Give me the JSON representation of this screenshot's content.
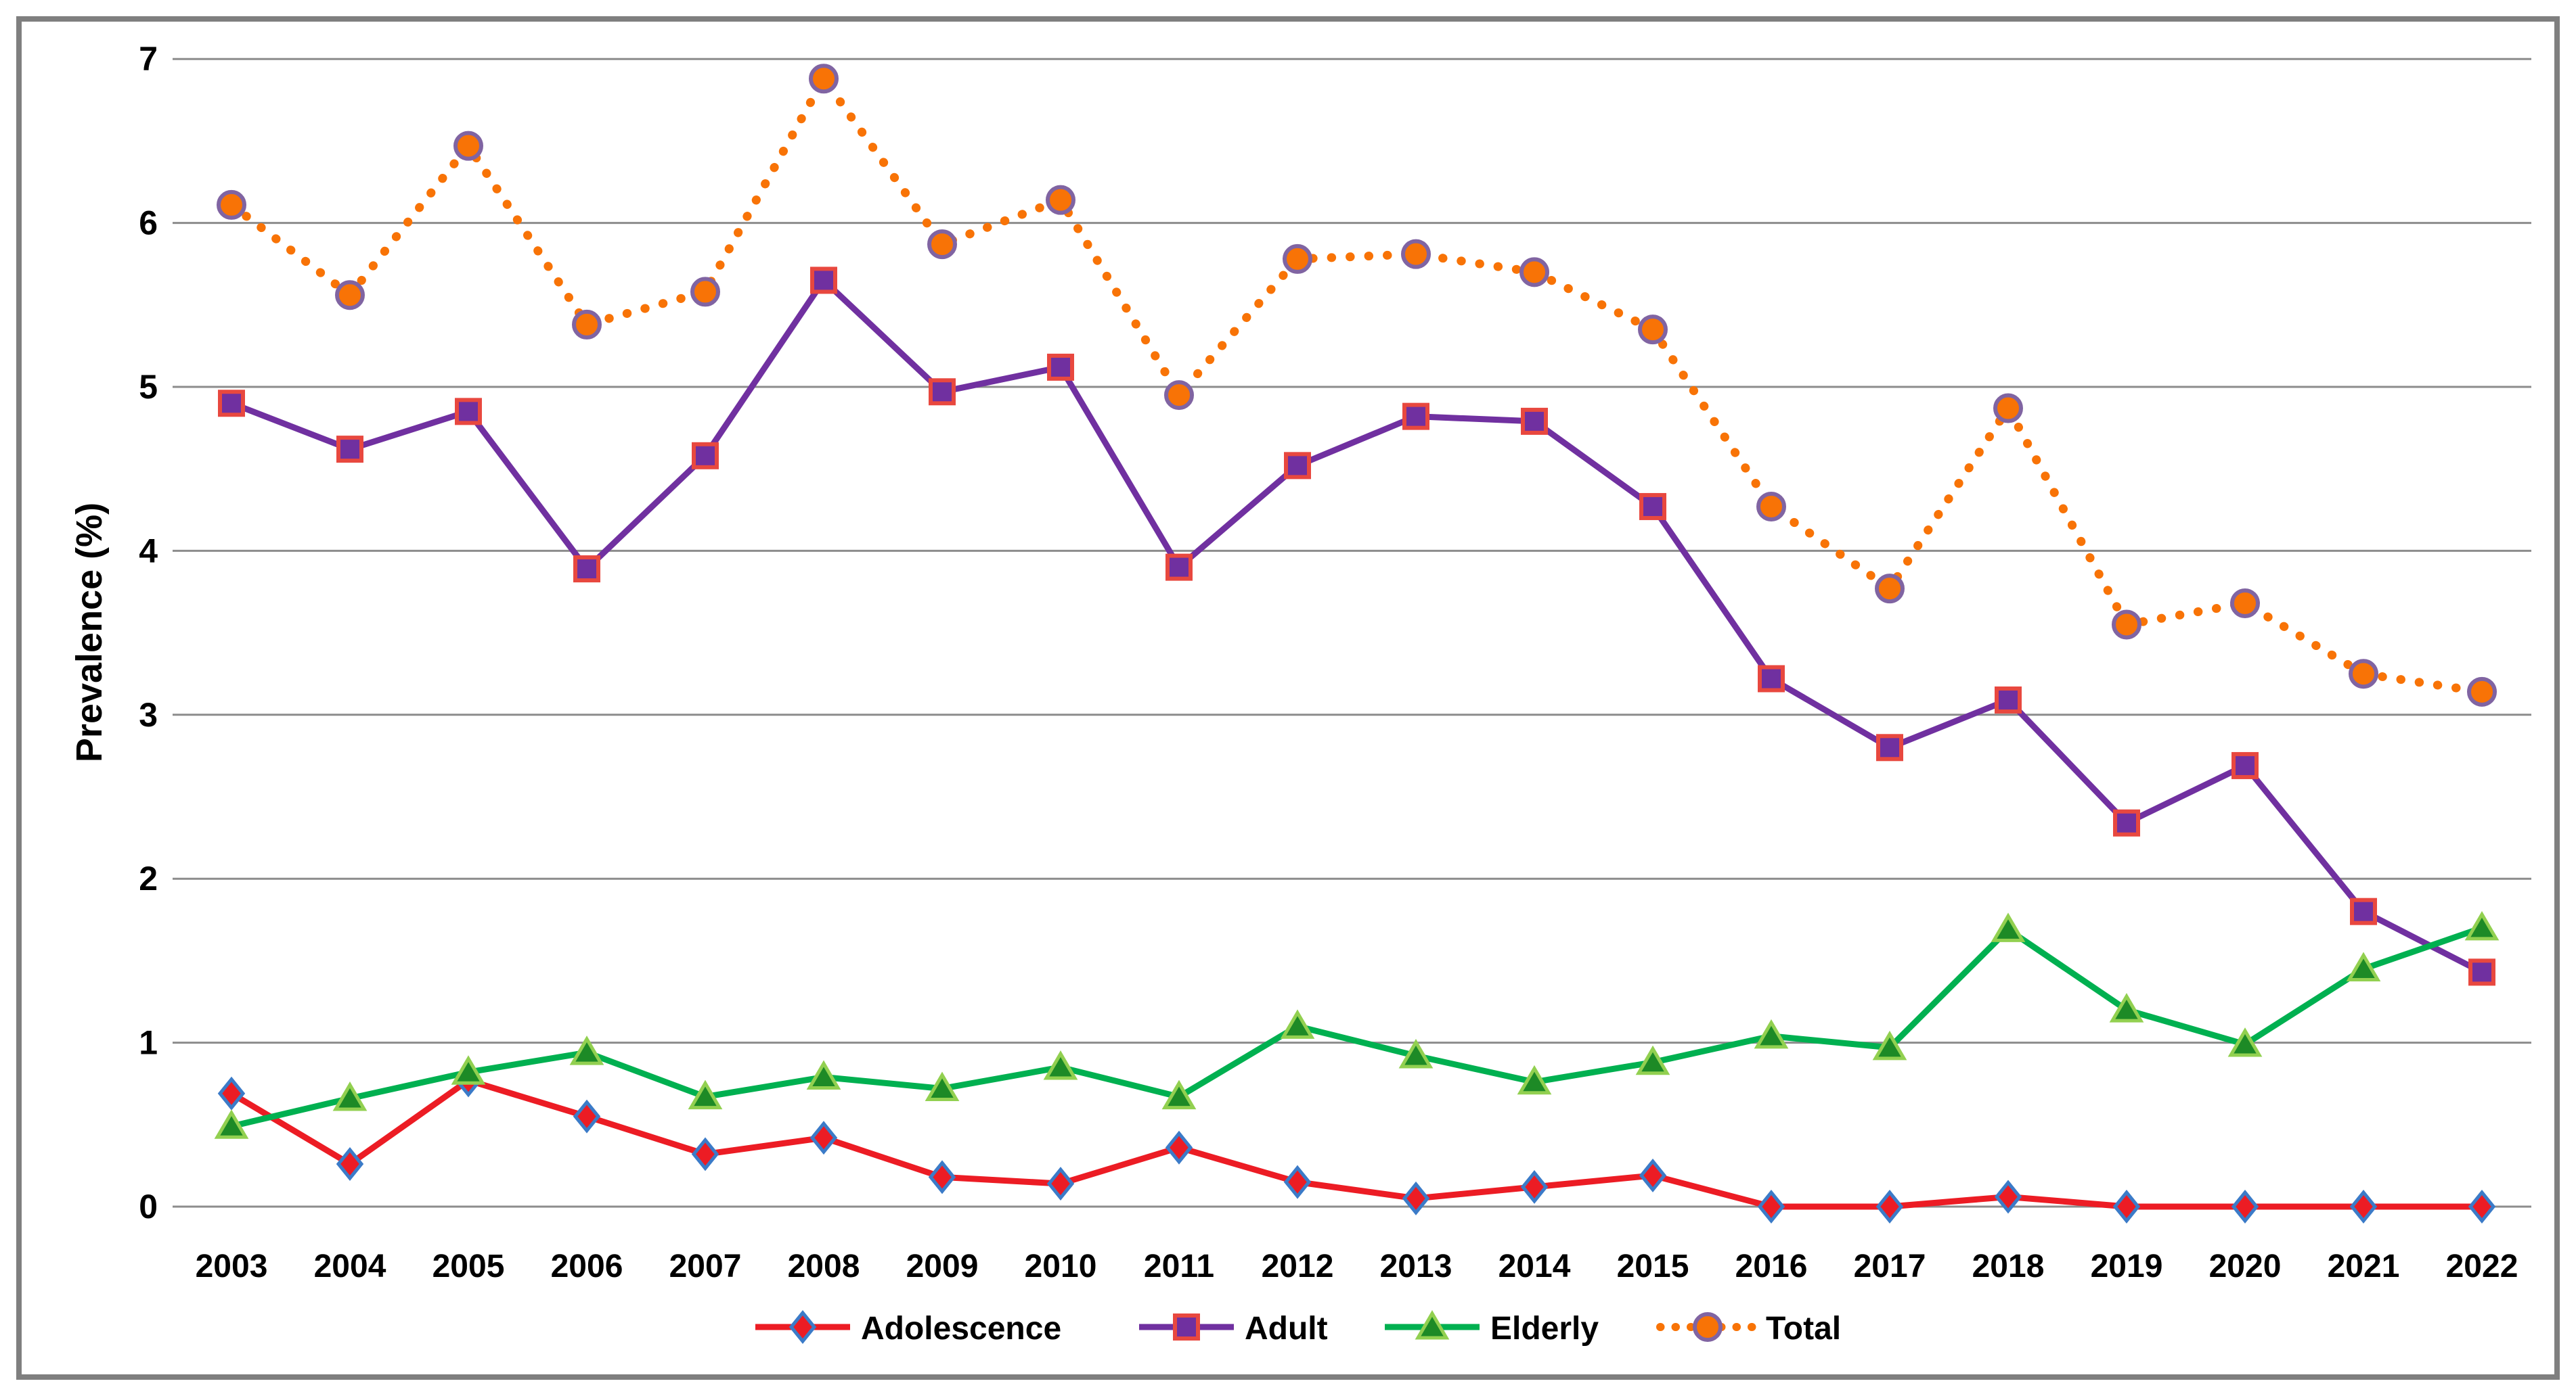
{
  "figure": {
    "background": "#FFFFFF",
    "frame_color": "#7F7F7F",
    "gridline_color": "#8C8C8C",
    "text_color": "#000000"
  },
  "chart_data": {
    "type": "line",
    "title": "",
    "xlabel": "",
    "ylabel": "Prevalence (%)",
    "ylim": [
      0,
      7
    ],
    "yticks": [
      "0",
      "1",
      "2",
      "3",
      "4",
      "5",
      "6",
      "7"
    ],
    "grid": true,
    "legend_position": "bottom-center",
    "categories": [
      "2003",
      "2004",
      "2005",
      "2006",
      "2007",
      "2008",
      "2009",
      "2010",
      "2011",
      "2012",
      "2013",
      "2014",
      "2015",
      "2016",
      "2017",
      "2018",
      "2019",
      "2020",
      "2021",
      "2022"
    ],
    "series": [
      {
        "name": "Adolescence",
        "line_color": "#EC1C24",
        "line_style": "solid",
        "marker": "diamond",
        "marker_fill": "#EC1C24",
        "marker_outline": "#3B7BC8",
        "values": [
          0.69,
          0.26,
          0.77,
          0.55,
          0.32,
          0.42,
          0.18,
          0.14,
          0.36,
          0.15,
          0.05,
          0.12,
          0.19,
          0.0,
          0.0,
          0.06,
          0.0,
          0.0,
          0.0,
          0.0
        ]
      },
      {
        "name": "Adult",
        "line_color": "#7030A0",
        "line_style": "solid",
        "marker": "square",
        "marker_fill": "#7030A0",
        "marker_outline": "#E8483F",
        "values": [
          4.9,
          4.62,
          4.85,
          3.89,
          4.58,
          5.65,
          4.97,
          5.12,
          3.9,
          4.52,
          4.82,
          4.79,
          4.27,
          3.22,
          2.8,
          3.09,
          2.34,
          2.69,
          1.8,
          1.43
        ]
      },
      {
        "name": "Elderly",
        "line_color": "#00B050",
        "line_style": "solid",
        "marker": "triangle",
        "marker_fill": "#1D8A26",
        "marker_outline": "#92D050",
        "values": [
          0.49,
          0.66,
          0.82,
          0.94,
          0.67,
          0.79,
          0.72,
          0.85,
          0.67,
          1.1,
          0.92,
          0.76,
          0.88,
          1.04,
          0.97,
          1.69,
          1.2,
          0.99,
          1.45,
          1.7
        ]
      },
      {
        "name": "Total",
        "line_color": "#F87306",
        "line_style": "dotted",
        "marker": "circle",
        "marker_fill": "#F87306",
        "marker_outline": "#8064A2",
        "values": [
          6.11,
          5.56,
          6.47,
          5.38,
          5.58,
          6.88,
          5.87,
          6.14,
          4.95,
          5.78,
          5.81,
          5.7,
          5.35,
          4.27,
          3.77,
          4.87,
          3.55,
          3.68,
          3.25,
          3.14
        ]
      }
    ]
  }
}
